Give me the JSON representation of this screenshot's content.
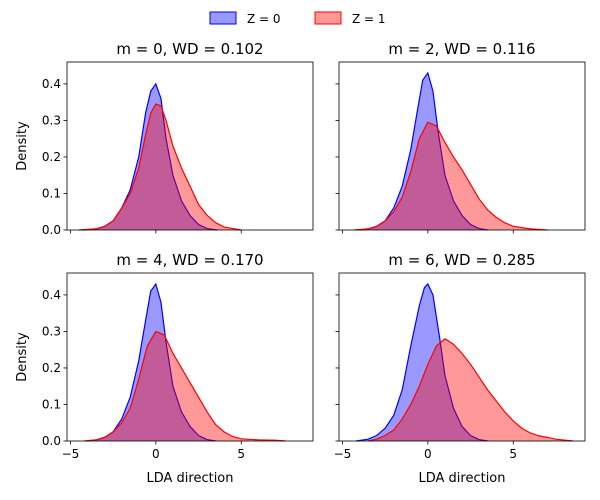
{
  "legend": [
    {
      "label": "Z = 0",
      "fill": "#0000ff",
      "fill_opacity": 0.4,
      "stroke": "#0000ff"
    },
    {
      "label": "Z = 1",
      "fill": "#ff0000",
      "fill_opacity": 0.4,
      "stroke": "#ff0000"
    }
  ],
  "chart_data": [
    {
      "type": "area",
      "title": "m = 0, WD = 0.102",
      "xlabel": "",
      "ylabel": "Density",
      "xlim": [
        -5.2,
        9.2
      ],
      "ylim": [
        0,
        0.46
      ],
      "xticks": [
        -5,
        0,
        5
      ],
      "xtick_labels": [
        "",
        "",
        ""
      ],
      "yticks": [
        0.0,
        0.1,
        0.2,
        0.3,
        0.4
      ],
      "ytick_labels": [
        "0.0",
        "0.1",
        "0.2",
        "0.3",
        "0.4"
      ],
      "series": [
        {
          "name": "Z = 0",
          "x": [
            -4.3,
            -3.5,
            -3,
            -2.5,
            -2,
            -1.5,
            -1,
            -0.6,
            -0.3,
            0,
            0.3,
            0.6,
            1,
            1.5,
            2,
            2.5,
            3,
            3.6
          ],
          "y": [
            0,
            0.003,
            0.01,
            0.025,
            0.06,
            0.11,
            0.2,
            0.32,
            0.38,
            0.4,
            0.36,
            0.25,
            0.15,
            0.08,
            0.04,
            0.015,
            0.004,
            0
          ]
        },
        {
          "name": "Z = 1",
          "x": [
            -4.5,
            -3.5,
            -3,
            -2.5,
            -2,
            -1.5,
            -1,
            -0.6,
            -0.3,
            0,
            0.3,
            0.6,
            1,
            1.5,
            2,
            2.5,
            3,
            3.5,
            4,
            5
          ],
          "y": [
            0,
            0.003,
            0.01,
            0.025,
            0.06,
            0.1,
            0.17,
            0.26,
            0.32,
            0.345,
            0.34,
            0.3,
            0.23,
            0.17,
            0.12,
            0.07,
            0.04,
            0.02,
            0.008,
            0
          ]
        }
      ]
    },
    {
      "type": "area",
      "title": "m = 2, WD = 0.116",
      "xlabel": "",
      "ylabel": "",
      "xlim": [
        -5.2,
        9.2
      ],
      "ylim": [
        0,
        0.46
      ],
      "xticks": [
        -5,
        0,
        5
      ],
      "xtick_labels": [
        "",
        "",
        ""
      ],
      "yticks": [
        0.0,
        0.1,
        0.2,
        0.3,
        0.4
      ],
      "ytick_labels": [
        "",
        "",
        "",
        "",
        ""
      ],
      "series": [
        {
          "name": "Z = 0",
          "x": [
            -4,
            -3.5,
            -3,
            -2.5,
            -2,
            -1.5,
            -1,
            -0.6,
            -0.3,
            0,
            0.3,
            0.6,
            1,
            1.5,
            2,
            2.5,
            3,
            3.5
          ],
          "y": [
            0,
            0.003,
            0.01,
            0.025,
            0.06,
            0.12,
            0.22,
            0.33,
            0.41,
            0.43,
            0.38,
            0.27,
            0.15,
            0.08,
            0.04,
            0.015,
            0.004,
            0
          ]
        },
        {
          "name": "Z = 1",
          "x": [
            -4.3,
            -3.5,
            -3,
            -2.5,
            -2,
            -1.5,
            -1,
            -0.5,
            0,
            0.5,
            1,
            1.5,
            2,
            2.5,
            3,
            3.5,
            4,
            4.5,
            5,
            6,
            7
          ],
          "y": [
            0,
            0.003,
            0.01,
            0.025,
            0.05,
            0.09,
            0.16,
            0.25,
            0.295,
            0.285,
            0.24,
            0.2,
            0.165,
            0.125,
            0.085,
            0.055,
            0.035,
            0.02,
            0.01,
            0.003,
            0
          ]
        }
      ]
    },
    {
      "type": "area",
      "title": "m = 4, WD = 0.170",
      "xlabel": "LDA direction",
      "ylabel": "Density",
      "xlim": [
        -5.2,
        9.2
      ],
      "ylim": [
        0,
        0.46
      ],
      "xticks": [
        -5,
        0,
        5
      ],
      "xtick_labels": [
        "−5",
        "0",
        "5"
      ],
      "yticks": [
        0.0,
        0.1,
        0.2,
        0.3,
        0.4
      ],
      "ytick_labels": [
        "0.0",
        "0.1",
        "0.2",
        "0.3",
        "0.4"
      ],
      "series": [
        {
          "name": "Z = 0",
          "x": [
            -4,
            -3.5,
            -3,
            -2.5,
            -2,
            -1.5,
            -1,
            -0.6,
            -0.3,
            0,
            0.3,
            0.6,
            1,
            1.5,
            2,
            2.5,
            3,
            3.5
          ],
          "y": [
            0,
            0.003,
            0.01,
            0.025,
            0.06,
            0.12,
            0.22,
            0.33,
            0.41,
            0.43,
            0.38,
            0.27,
            0.15,
            0.08,
            0.04,
            0.015,
            0.004,
            0
          ]
        },
        {
          "name": "Z = 1",
          "x": [
            -4.2,
            -3.5,
            -3,
            -2.5,
            -2,
            -1.5,
            -1,
            -0.5,
            0,
            0.5,
            1,
            1.5,
            2,
            2.5,
            3,
            3.5,
            4,
            4.5,
            5,
            6,
            7,
            7.6
          ],
          "y": [
            0,
            0.003,
            0.01,
            0.025,
            0.05,
            0.09,
            0.17,
            0.26,
            0.3,
            0.29,
            0.24,
            0.2,
            0.16,
            0.12,
            0.08,
            0.045,
            0.025,
            0.012,
            0.006,
            0.003,
            0.002,
            0
          ]
        }
      ]
    },
    {
      "type": "area",
      "title": "m = 6, WD = 0.285",
      "xlabel": "LDA direction",
      "ylabel": "",
      "xlim": [
        -5.2,
        9.2
      ],
      "ylim": [
        0,
        0.46
      ],
      "xticks": [
        -5,
        0,
        5
      ],
      "xtick_labels": [
        "−5",
        "0",
        "5"
      ],
      "yticks": [
        0.0,
        0.1,
        0.2,
        0.3,
        0.4
      ],
      "ytick_labels": [
        "",
        "",
        "",
        "",
        ""
      ],
      "series": [
        {
          "name": "Z = 0",
          "x": [
            -4.2,
            -3.5,
            -3,
            -2.5,
            -2,
            -1.5,
            -1,
            -0.5,
            -0.2,
            0,
            0.3,
            0.7,
            1,
            1.5,
            2,
            2.5,
            3,
            3.5
          ],
          "y": [
            0,
            0.005,
            0.015,
            0.035,
            0.07,
            0.14,
            0.26,
            0.37,
            0.42,
            0.43,
            0.4,
            0.28,
            0.18,
            0.09,
            0.04,
            0.015,
            0.004,
            0
          ]
        },
        {
          "name": "Z = 1",
          "x": [
            -3.5,
            -3,
            -2.5,
            -2,
            -1.5,
            -1,
            -0.5,
            0,
            0.5,
            1,
            1.5,
            2,
            2.5,
            3,
            3.5,
            4,
            4.5,
            5,
            5.5,
            6,
            6.5,
            7,
            7.5,
            8.5
          ],
          "y": [
            0,
            0.005,
            0.015,
            0.03,
            0.06,
            0.1,
            0.15,
            0.21,
            0.26,
            0.28,
            0.265,
            0.24,
            0.21,
            0.175,
            0.14,
            0.11,
            0.08,
            0.055,
            0.035,
            0.022,
            0.014,
            0.01,
            0.005,
            0
          ]
        }
      ]
    }
  ]
}
